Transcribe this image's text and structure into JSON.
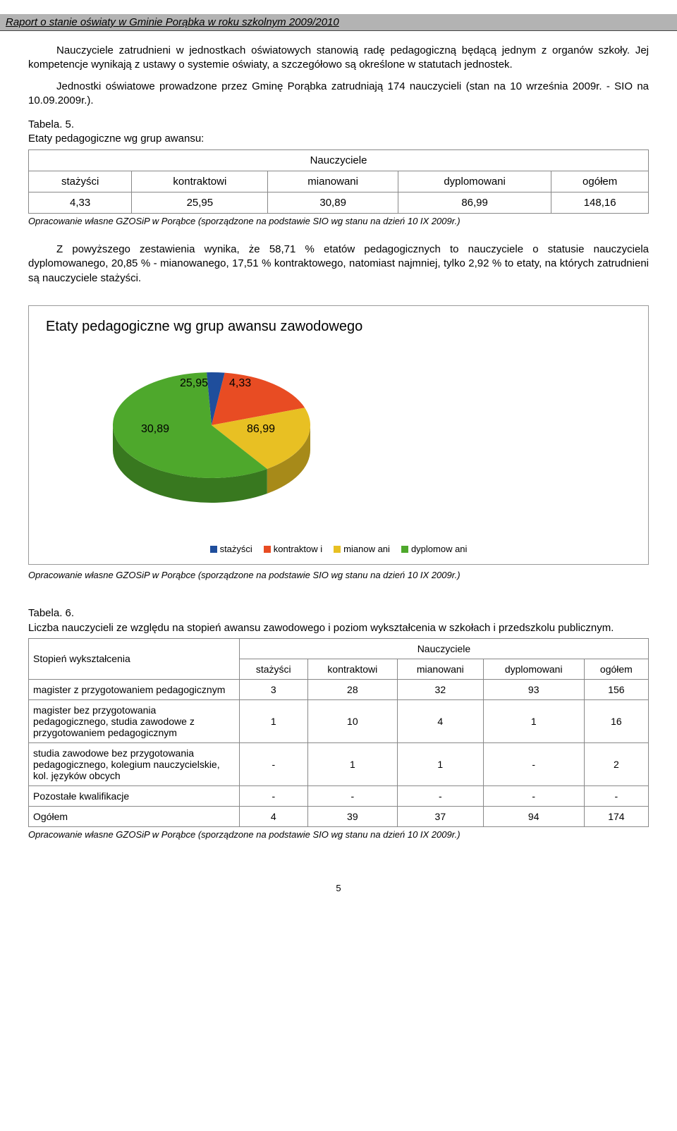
{
  "header": "Raport o stanie oświaty w Gminie Porąbka w roku szkolnym 2009/2010",
  "para1": "Nauczyciele zatrudnieni w jednostkach oświatowych stanowią radę pedagogiczną będącą jednym z organów szkoły. Jej kompetencje wynikają z ustawy o systemie oświaty, a szczegółowo są określone w statutach jednostek.",
  "para2": "Jednostki oświatowe prowadzone przez Gminę Porąbka zatrudniają 174 nauczycieli (stan na 10 września 2009r. - SIO na 10.09.2009r.).",
  "table5": {
    "label": "Tabela. 5.",
    "subtitle": "Etaty pedagogiczne wg grup awansu:",
    "head_merge": "Nauczyciele",
    "columns": [
      "stażyści",
      "kontraktowi",
      "mianowani",
      "dyplomowani",
      "ogółem"
    ],
    "row": [
      "4,33",
      "25,95",
      "30,89",
      "86,99",
      "148,16"
    ],
    "source": "Opracowanie własne GZOSiP w Porąbce (sporządzone na podstawie SIO wg stanu na dzień  10 IX 2009r.)"
  },
  "para3": "Z powyższego zestawienia wynika, że 58,71 % etatów pedagogicznych to nauczyciele o statusie nauczyciela dyplomowanego, 20,85 % - mianowanego, 17,51 % kontraktowego, natomiast najmniej, tylko 2,92 % to etaty, na których zatrudnieni są nauczyciele stażyści.",
  "chart": {
    "title": "Etaty pedagogiczne wg grup awansu zawodowego",
    "type": "pie-3d",
    "slices": [
      {
        "name": "stażyści",
        "label": "4,33",
        "value": 4.33,
        "color": "#1f4e9c"
      },
      {
        "name": "kontraktowi",
        "label": "25,95",
        "value": 25.95,
        "color": "#e84c23"
      },
      {
        "name": "mianowani",
        "label": "30,89",
        "value": 30.89,
        "color": "#e8c023"
      },
      {
        "name": "dyplomowani",
        "label": "86,99",
        "value": 86.99,
        "color": "#4ea82c"
      }
    ],
    "legend_items": [
      "stażyści",
      "kontraktow i",
      "mianow ani",
      "dyplomow ani"
    ],
    "label_fontsize": 15,
    "title_fontsize": 20,
    "background_color": "#ffffff"
  },
  "chart_source": "Opracowanie własne GZOSiP w Porąbce (sporządzone na podstawie SIO wg stanu na dzień 10 IX 2009r.)",
  "table6": {
    "label": "Tabela. 6.",
    "subtitle": "Liczba nauczycieli ze względu na stopień awansu zawodowego i poziom wykształcenia w szkołach i przedszkolu publicznym.",
    "rowhead": "Stopień wykształcenia",
    "head_merge": "Nauczyciele",
    "columns": [
      "stażyści",
      "kontraktowi",
      "mianowani",
      "dyplomowani",
      "ogółem"
    ],
    "rows": [
      {
        "label": "magister z przygotowaniem pedagogicznym",
        "vals": [
          "3",
          "28",
          "32",
          "93",
          "156"
        ]
      },
      {
        "label": "magister bez przygotowania pedagogicznego, studia zawodowe z przygotowaniem pedagogicznym",
        "vals": [
          "1",
          "10",
          "4",
          "1",
          "16"
        ]
      },
      {
        "label": "studia zawodowe  bez przygotowania pedagogicznego, kolegium nauczycielskie, kol. języków obcych",
        "vals": [
          "-",
          "1",
          "1",
          "-",
          "2"
        ]
      },
      {
        "label": "Pozostałe kwalifikacje",
        "vals": [
          "-",
          "-",
          "-",
          "-",
          "-"
        ]
      },
      {
        "label": "Ogółem",
        "vals": [
          "4",
          "39",
          "37",
          "94",
          "174"
        ]
      }
    ],
    "source": "Opracowanie własne GZOSiP w Porąbce (sporządzone na podstawie SIO wg stanu na dzień 10 IX 2009r.)"
  },
  "page_number": "5"
}
